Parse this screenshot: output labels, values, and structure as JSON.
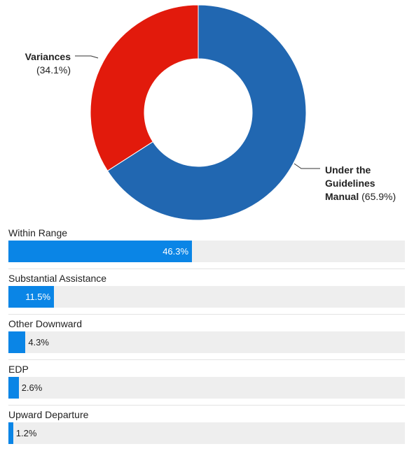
{
  "chart_data": [
    {
      "type": "pie",
      "donut": true,
      "slices": [
        {
          "label": "Under the Guidelines Manual",
          "label_lines": [
            "Under the",
            "Guidelines",
            "Manual"
          ],
          "value": 65.9,
          "value_text": "(65.9%)",
          "color": "#2167b1"
        },
        {
          "label": "Variances",
          "label_lines": [
            "Variances"
          ],
          "value": 34.1,
          "value_text": "(34.1%)",
          "color": "#e21a0c"
        }
      ]
    },
    {
      "type": "bar",
      "orientation": "horizontal",
      "bar_color": "#0a85e6",
      "track_color": "#eeeeee",
      "xlim": [
        0,
        100
      ],
      "categories": [
        "Within Range",
        "Substantial Assistance",
        "Other Downward",
        "EDP",
        "Upward Departure"
      ],
      "values": [
        46.3,
        11.5,
        4.3,
        2.6,
        1.2
      ],
      "value_labels": [
        "46.3%",
        "11.5%",
        "4.3%",
        "2.6%",
        "1.2%"
      ]
    }
  ]
}
